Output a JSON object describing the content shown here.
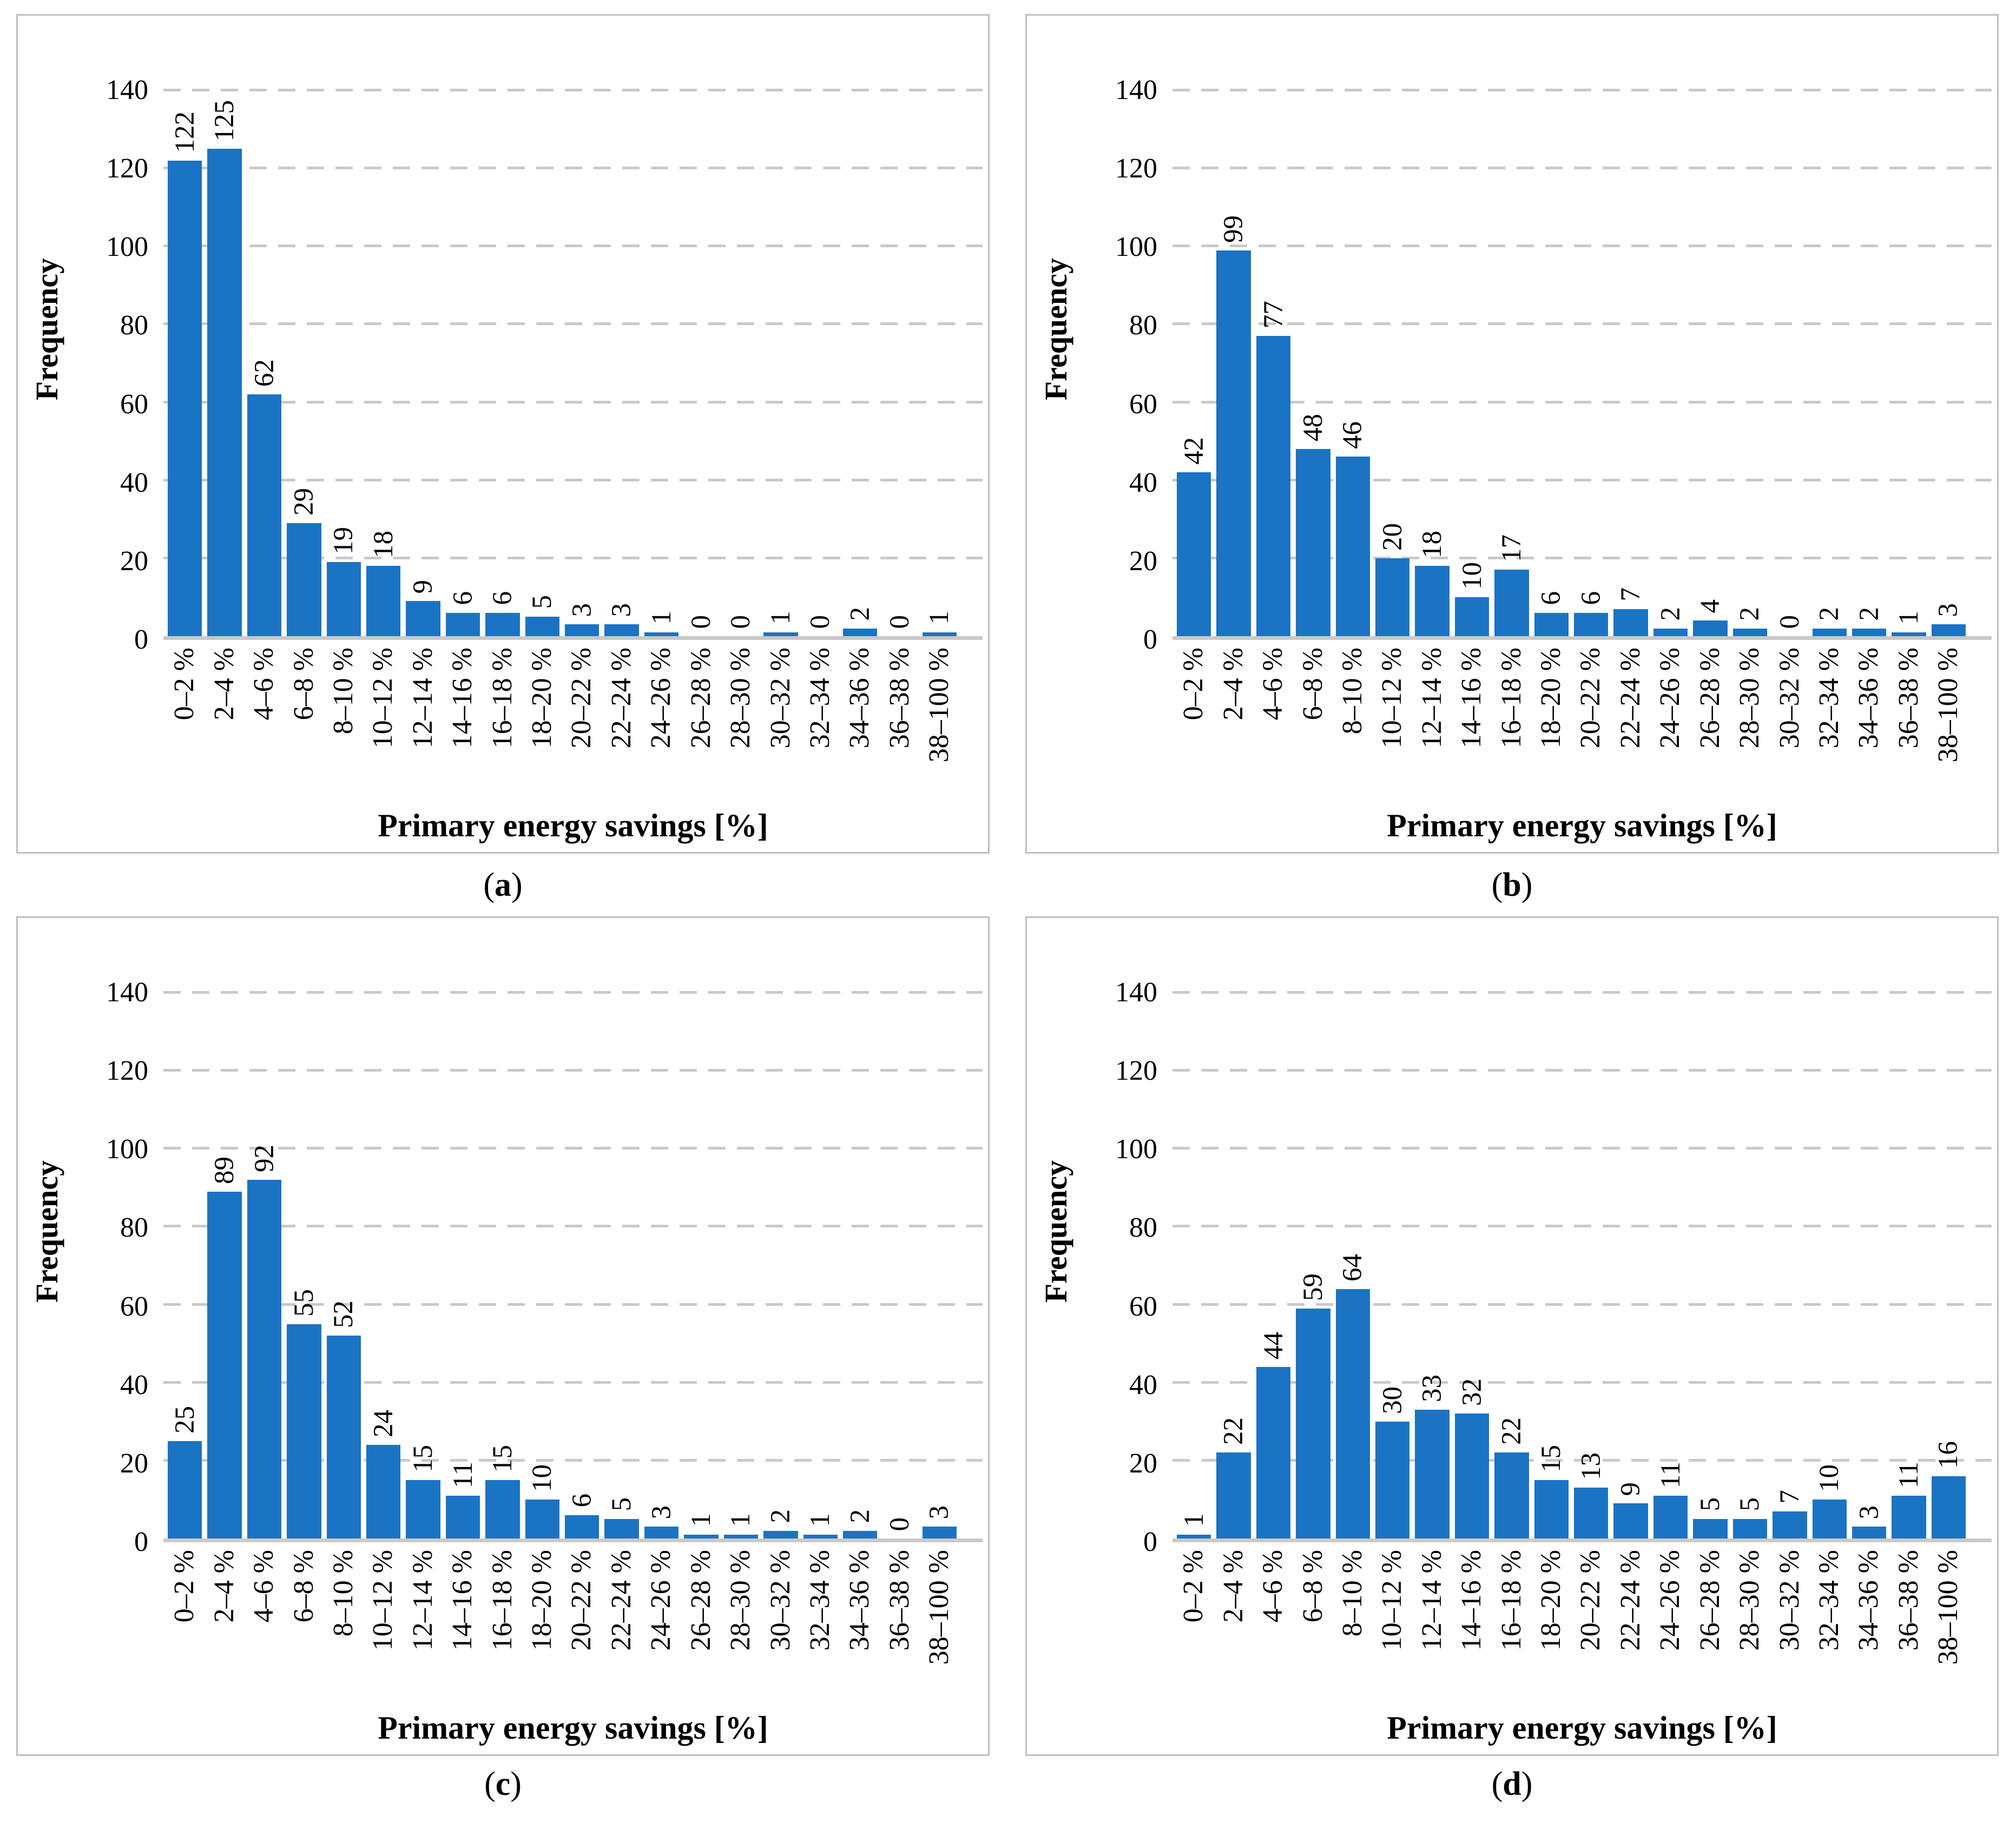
{
  "figure": {
    "x_axis_title": "Primary energy savings [%]",
    "y_axis_title": "Frequency",
    "bar_color": "#1b73c4",
    "gridline_color": "#c9c9c9",
    "axis_line_color": "#c9c9c9",
    "panel_border_color": "#bfbfbf"
  },
  "chart_data": [
    {
      "type": "bar",
      "caption": "(a)",
      "caption_letter": "a",
      "xlabel": "Primary energy savings [%]",
      "ylabel": "Frequency",
      "ylim": [
        0,
        140
      ],
      "yticks": [
        0,
        20,
        40,
        60,
        80,
        100,
        120,
        140
      ],
      "grid": "dashed horizontal",
      "legend": "none",
      "categories": [
        "0–2 %",
        "2–4 %",
        "4–6 %",
        "6–8 %",
        "8–10 %",
        "10–12 %",
        "12–14 %",
        "14–16 %",
        "16–18 %",
        "18–20 %",
        "20–22 %",
        "22–24 %",
        "24–26 %",
        "26–28 %",
        "28–30 %",
        "30–32 %",
        "32–34 %",
        "34–36 %",
        "36–38 %",
        "38–100 %"
      ],
      "values": [
        122,
        125,
        62,
        29,
        19,
        18,
        9,
        6,
        6,
        5,
        3,
        3,
        1,
        0,
        0,
        1,
        0,
        2,
        0,
        1
      ]
    },
    {
      "type": "bar",
      "caption": "(b)",
      "caption_letter": "b",
      "xlabel": "Primary energy savings [%]",
      "ylabel": "Frequency",
      "ylim": [
        0,
        140
      ],
      "yticks": [
        0,
        20,
        40,
        60,
        80,
        100,
        120,
        140
      ],
      "grid": "dashed horizontal",
      "legend": "none",
      "categories": [
        "0–2 %",
        "2–4 %",
        "4–6 %",
        "6–8 %",
        "8–10 %",
        "10–12 %",
        "12–14 %",
        "14–16 %",
        "16–18 %",
        "18–20 %",
        "20–22 %",
        "22–24 %",
        "24–26 %",
        "26–28 %",
        "28–30 %",
        "30–32 %",
        "32–34 %",
        "34–36 %",
        "36–38 %",
        "38–100 %"
      ],
      "values": [
        42,
        99,
        77,
        48,
        46,
        20,
        18,
        10,
        17,
        6,
        6,
        7,
        2,
        4,
        2,
        0,
        2,
        2,
        1,
        3
      ]
    },
    {
      "type": "bar",
      "caption": "(c)",
      "caption_letter": "c",
      "xlabel": "Primary energy savings [%]",
      "ylabel": "Frequency",
      "ylim": [
        0,
        140
      ],
      "yticks": [
        0,
        20,
        40,
        60,
        80,
        100,
        120,
        140
      ],
      "grid": "dashed horizontal",
      "legend": "none",
      "categories": [
        "0–2 %",
        "2–4 %",
        "4–6 %",
        "6–8 %",
        "8–10 %",
        "10–12 %",
        "12–14 %",
        "14–16 %",
        "16–18 %",
        "18–20 %",
        "20–22 %",
        "22–24 %",
        "24–26 %",
        "26–28 %",
        "28–30 %",
        "30–32 %",
        "32–34 %",
        "34–36 %",
        "36–38 %",
        "38–100 %"
      ],
      "values": [
        25,
        89,
        92,
        55,
        52,
        24,
        15,
        11,
        15,
        10,
        6,
        5,
        3,
        1,
        1,
        2,
        1,
        2,
        0,
        3
      ]
    },
    {
      "type": "bar",
      "caption": "(d)",
      "caption_letter": "d",
      "xlabel": "Primary energy savings [%]",
      "ylabel": "Frequency",
      "ylim": [
        0,
        140
      ],
      "yticks": [
        0,
        20,
        40,
        60,
        80,
        100,
        120,
        140
      ],
      "grid": "dashed horizontal",
      "legend": "none",
      "categories": [
        "0–2 %",
        "2–4 %",
        "4–6 %",
        "6–8 %",
        "8–10 %",
        "10–12 %",
        "12–14 %",
        "14–16 %",
        "16–18 %",
        "18–20 %",
        "20–22 %",
        "22–24 %",
        "24–26 %",
        "26–28 %",
        "28–30 %",
        "30–32 %",
        "32–34 %",
        "34–36 %",
        "36–38 %",
        "38–100 %"
      ],
      "values": [
        1,
        22,
        44,
        59,
        64,
        30,
        33,
        32,
        22,
        15,
        13,
        9,
        11,
        5,
        5,
        7,
        10,
        3,
        11,
        16
      ]
    }
  ]
}
